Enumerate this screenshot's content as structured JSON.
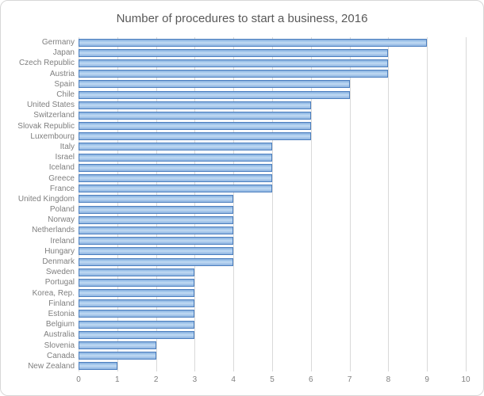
{
  "chart_data": {
    "type": "bar",
    "orientation": "horizontal",
    "title": "Number of procedures to start a business, 2016",
    "categories": [
      "Germany",
      "Japan",
      "Czech Republic",
      "Austria",
      "Spain",
      "Chile",
      "United States",
      "Switzerland",
      "Slovak Republic",
      "Luxembourg",
      "Italy",
      "Israel",
      "Iceland",
      "Greece",
      "France",
      "United Kingdom",
      "Poland",
      "Norway",
      "Netherlands",
      "Ireland",
      "Hungary",
      "Denmark",
      "Sweden",
      "Portugal",
      "Korea, Rep.",
      "Finland",
      "Estonia",
      "Belgium",
      "Australia",
      "Slovenia",
      "Canada",
      "New Zealand"
    ],
    "values": [
      9,
      8,
      8,
      8,
      7,
      7,
      6,
      6,
      6,
      6,
      5,
      5,
      5,
      5,
      5,
      4,
      4,
      4,
      4,
      4,
      4,
      4,
      3,
      3,
      3,
      3,
      3,
      3,
      3,
      2,
      2,
      1
    ],
    "xlabel": "",
    "ylabel": "",
    "xlim": [
      0,
      10
    ],
    "xticks": [
      0,
      1,
      2,
      3,
      4,
      5,
      6,
      7,
      8,
      9,
      10
    ],
    "grid": "vertical",
    "legend": "none",
    "colors": {
      "bar_fill_light": "#c2daf3",
      "bar_fill_mid": "#a9cbee",
      "bar_border": "#4c7fbf",
      "gridline": "#d9d9d9",
      "title_text": "#595959",
      "axis_text": "#7f7f7f",
      "chart_border": "#d7d7d7"
    }
  }
}
